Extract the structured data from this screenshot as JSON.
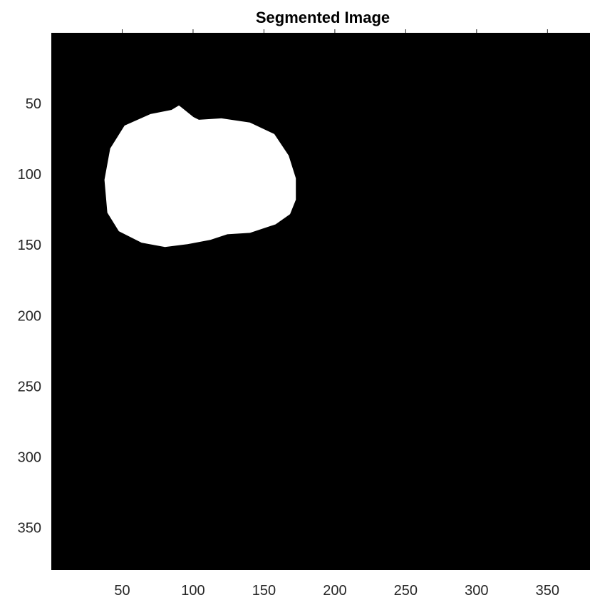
{
  "title": "Segmented Image",
  "image": {
    "width": 380,
    "height": 380,
    "background": "#000000",
    "foreground": "#ffffff",
    "mask_outline": [
      [
        90,
        52
      ],
      [
        100,
        60
      ],
      [
        104,
        62
      ],
      [
        120,
        61
      ],
      [
        140,
        64
      ],
      [
        157,
        72
      ],
      [
        167,
        87
      ],
      [
        172,
        103
      ],
      [
        172,
        118
      ],
      [
        168,
        128
      ],
      [
        158,
        135
      ],
      [
        140,
        141
      ],
      [
        124,
        142
      ],
      [
        112,
        146
      ],
      [
        96,
        149
      ],
      [
        80,
        151
      ],
      [
        64,
        148
      ],
      [
        48,
        140
      ],
      [
        40,
        127
      ],
      [
        38,
        104
      ],
      [
        42,
        82
      ],
      [
        52,
        66
      ],
      [
        70,
        58
      ],
      [
        85,
        55
      ]
    ]
  },
  "axes": {
    "x_ticks": [
      50,
      100,
      150,
      200,
      250,
      300,
      350
    ],
    "y_ticks": [
      50,
      100,
      150,
      200,
      250,
      300,
      350
    ],
    "x_tick_labels": [
      "50",
      "100",
      "150",
      "200",
      "250",
      "300",
      "350"
    ],
    "y_tick_labels": [
      "50",
      "100",
      "150",
      "200",
      "250",
      "300",
      "350"
    ]
  }
}
